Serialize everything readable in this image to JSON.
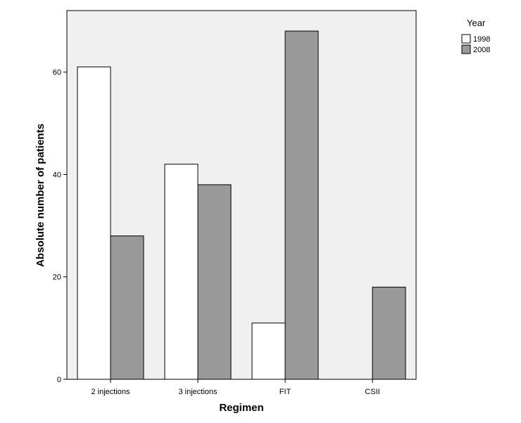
{
  "chart_data": {
    "type": "bar",
    "categories": [
      "2 injections",
      "3 injections",
      "FIT",
      "CSII"
    ],
    "series": [
      {
        "name": "1998",
        "values": [
          61,
          42,
          11,
          0
        ],
        "color": "#ffffff"
      },
      {
        "name": "2008",
        "values": [
          28,
          38,
          68,
          18
        ],
        "color": "#999999"
      }
    ],
    "xlabel": "Regimen",
    "ylabel": "Absolute number of patients",
    "ylim": [
      0,
      72
    ],
    "yticks": [
      0,
      20,
      40,
      60
    ],
    "legend_title": "Year",
    "legend_position": "top-right",
    "plot_background": "#f0f0f0",
    "grid": false
  }
}
